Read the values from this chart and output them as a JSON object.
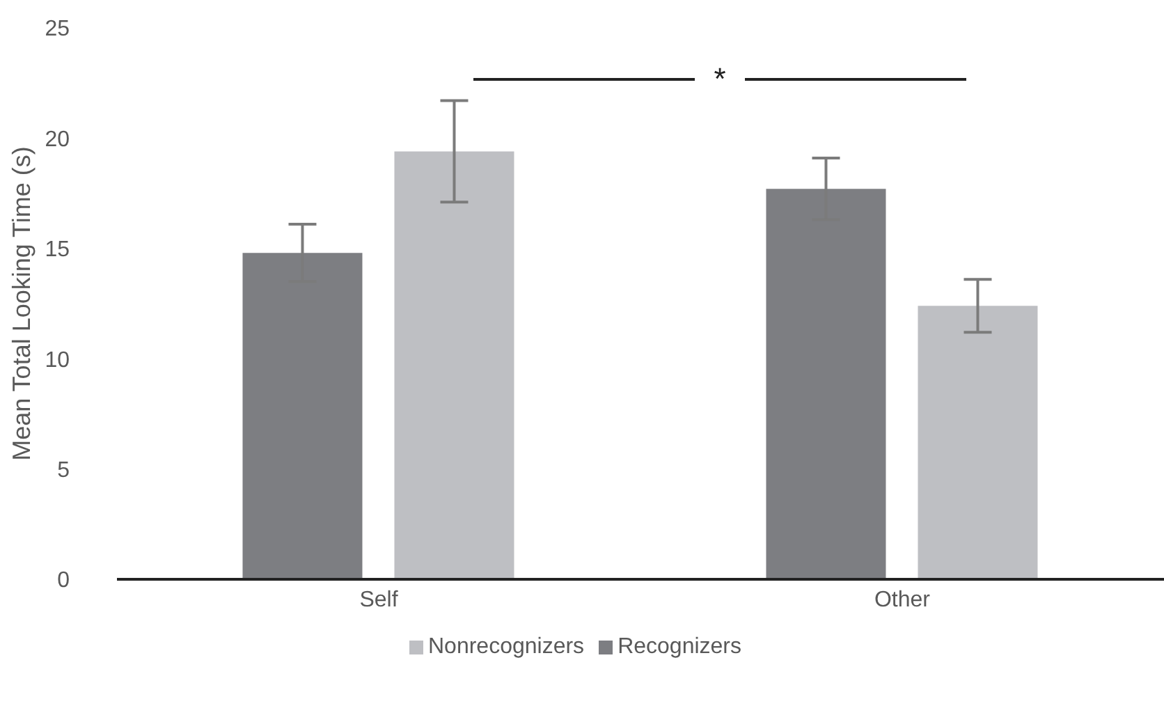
{
  "chart_data": {
    "type": "bar",
    "ylabel": "Mean Total Looking Time (s)",
    "categories": [
      "Self",
      "Other"
    ],
    "series": [
      {
        "name": "Recognizers",
        "color": "#7d7e82",
        "values": [
          14.8,
          17.7
        ],
        "errors": [
          1.3,
          1.4
        ]
      },
      {
        "name": "Nonrecognizers",
        "color": "#bebfc3",
        "values": [
          19.4,
          12.4
        ],
        "errors": [
          2.3,
          1.2
        ]
      }
    ],
    "ylim": [
      0,
      25
    ],
    "yticks": [
      0,
      5,
      10,
      15,
      20,
      25
    ],
    "grid": false,
    "legend": "bottom",
    "annotations": [
      "*"
    ]
  }
}
